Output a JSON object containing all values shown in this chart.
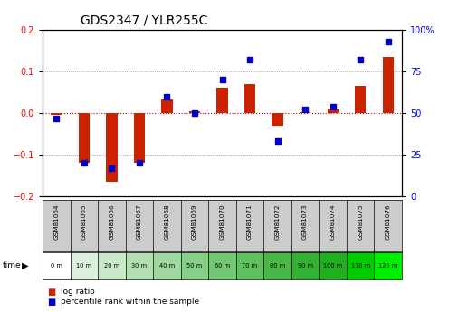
{
  "title": "GDS2347 / YLR255C",
  "samples": [
    "GSM81064",
    "GSM81065",
    "GSM81066",
    "GSM81067",
    "GSM81068",
    "GSM81069",
    "GSM81070",
    "GSM81071",
    "GSM81072",
    "GSM81073",
    "GSM81074",
    "GSM81075",
    "GSM81076"
  ],
  "time_labels": [
    "0 m",
    "10 m",
    "20 m",
    "30 m",
    "40 m",
    "50 m",
    "60 m",
    "70 m",
    "80 m",
    "90 m",
    "100 m",
    "110 m",
    "120 m"
  ],
  "log_ratio": [
    -0.005,
    -0.12,
    -0.165,
    -0.12,
    0.032,
    0.005,
    0.06,
    0.07,
    -0.03,
    0.003,
    0.01,
    0.065,
    0.135
  ],
  "percentile": [
    47,
    20,
    17,
    20,
    60,
    50,
    70,
    82,
    33,
    52,
    54,
    82,
    93
  ],
  "ylim_left": [
    -0.2,
    0.2
  ],
  "ylim_right": [
    0,
    100
  ],
  "bar_color": "#cc2200",
  "dot_color": "#0000cc",
  "zero_line_color": "#cc0000",
  "bg_color_chart": "#ffffff",
  "bg_color_sample_gray": "#cccccc",
  "time_row_colors": [
    "#ffffff",
    "#ddf0dd",
    "#c8e8c8",
    "#b3e0b3",
    "#9ed89e",
    "#88d088",
    "#73c873",
    "#5ec05e",
    "#49b849",
    "#34b034",
    "#1faf1f",
    "#00cc00",
    "#00ee00"
  ],
  "legend_bar_label": "log ratio",
  "legend_dot_label": "percentile rank within the sample",
  "title_fontsize": 10,
  "tick_fontsize": 7,
  "label_fontsize": 7
}
